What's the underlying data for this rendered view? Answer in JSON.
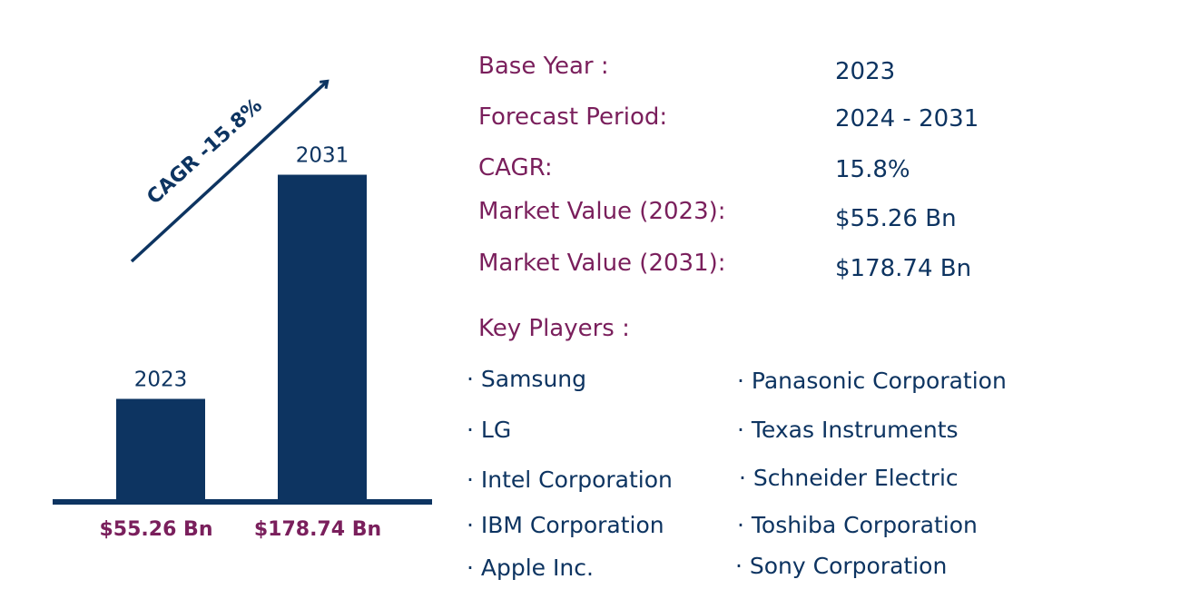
{
  "colors": {
    "bar": "#0d3461",
    "text_key": "#7a1f5c",
    "text_value": "#0d3461"
  },
  "chart_data": {
    "type": "bar",
    "categories": [
      "2023",
      "2031"
    ],
    "values": [
      55.26,
      178.74
    ],
    "value_labels": [
      "$55.26 Bn",
      "$178.74 Bn"
    ],
    "ylim": [
      0,
      210
    ],
    "annotation": "CAGR -15.8%"
  },
  "info": {
    "rows": [
      {
        "key": "Base Year :",
        "value": "2023"
      },
      {
        "key": "Forecast Period:",
        "value": "2024 - 2031"
      },
      {
        "key": "CAGR:",
        "value": "15.8%"
      },
      {
        "key": "Market Value (2023):",
        "value": "$55.26 Bn"
      },
      {
        "key": "Market Value (2031):",
        "value": "$178.74 Bn"
      }
    ],
    "players_title": "Key Players :",
    "players": [
      "· Samsung",
      "· LG",
      "· Intel Corporation",
      "· IBM Corporation",
      "· Apple Inc.",
      "· Panasonic Corporation",
      "· Texas Instruments",
      "· Schneider Electric",
      "· Toshiba Corporation",
      "· Sony Corporation"
    ]
  }
}
